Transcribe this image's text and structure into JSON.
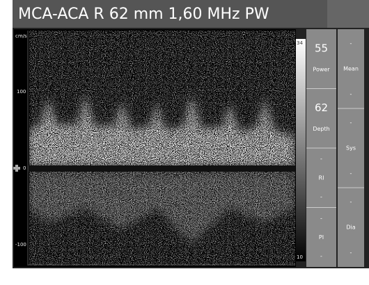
{
  "header": {
    "title": "MCA-ACA R 62 mm 1,60 MHz PW"
  },
  "spectrum": {
    "unit": "cm/s",
    "labels": [
      "100",
      "0",
      "-100"
    ]
  },
  "color_scale": {
    "max": "34",
    "min": "10"
  },
  "panel": {
    "left": [
      {
        "value": "55",
        "label": "Power"
      },
      {
        "value": "62",
        "label": "Depth"
      },
      {
        "top": "-",
        "label": "RI",
        "bottom": "-"
      },
      {
        "top": "-",
        "label": "PI",
        "bottom": "-"
      }
    ],
    "right": [
      {
        "top": "-",
        "label": "Mean",
        "bottom": "-"
      },
      {
        "top": "-",
        "label": "Sys",
        "bottom": "-"
      },
      {
        "top": "-",
        "label": "Dia",
        "bottom": "-"
      }
    ]
  }
}
